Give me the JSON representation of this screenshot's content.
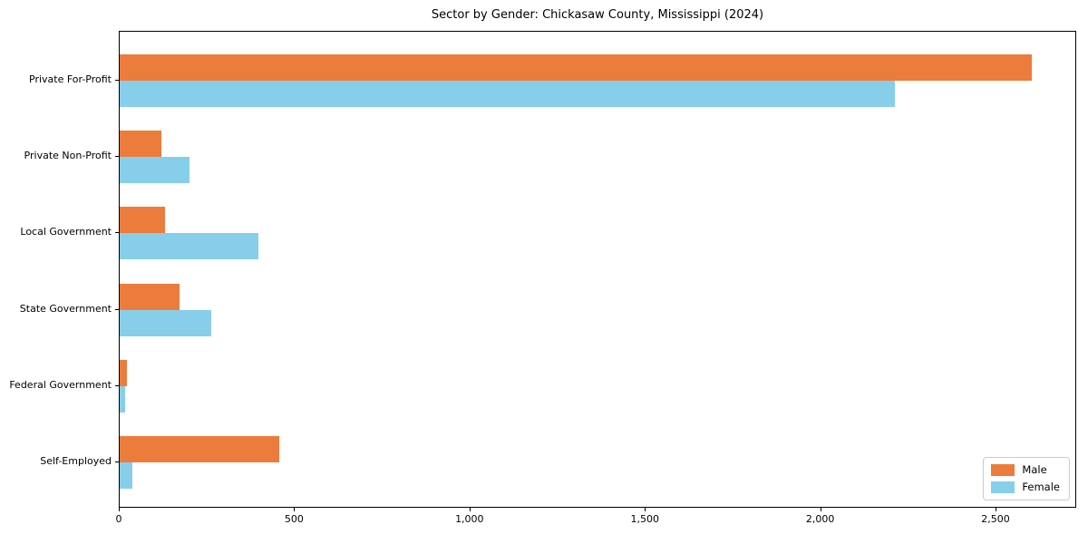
{
  "title": "Sector by Gender: Chickasaw County, Mississippi (2024)",
  "chart_data": {
    "type": "bar",
    "orientation": "horizontal",
    "title": "Sector by Gender: Chickasaw County, Mississippi (2024)",
    "categories": [
      "Private For-Profit",
      "Private Non-Profit",
      "Local Government",
      "State Government",
      "Federal Government",
      "Self-Employed"
    ],
    "series": [
      {
        "name": "Male",
        "color": "#eb7c3c",
        "values": [
          2600,
          120,
          130,
          170,
          20,
          455
        ]
      },
      {
        "name": "Female",
        "color": "#87ceeb",
        "values": [
          2210,
          200,
          395,
          260,
          15,
          35
        ]
      }
    ],
    "xlabel": "",
    "ylabel": "",
    "xlim": [
      0,
      2730
    ],
    "x_ticks": [
      0,
      500,
      1000,
      1500,
      2000,
      2500
    ],
    "x_tick_labels": [
      "0",
      "500",
      "1,000",
      "1,500",
      "2,000",
      "2,500"
    ],
    "grid": false,
    "legend_position": "lower right",
    "spine_color": "#000000",
    "background_color": "#ffffff"
  }
}
